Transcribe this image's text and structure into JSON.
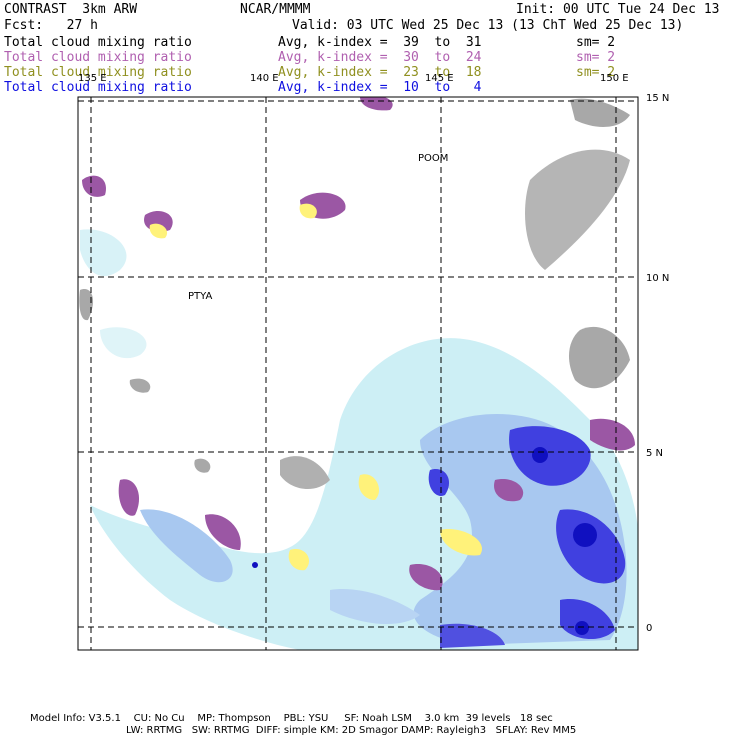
{
  "header": {
    "model": "CONTRAST  3km ARW",
    "center": "NCAR/MMMM",
    "init": "Init: 00 UTC Tue 24 Dec 13",
    "fcst": "Fcst:   27 h",
    "valid": "Valid: 03 UTC Wed 25 Dec 13 (13 ChT Wed 25 Dec 13)"
  },
  "colors": {
    "series1": "#000000",
    "series2": "#b060b0",
    "series3": "#909020",
    "series4": "#1010e0",
    "cloud_light": "#cdeff5",
    "cloud_mid": "#a8c8f0",
    "cloud_deep": "#4040e0",
    "cloud_core": "#1010c0",
    "magenta": "#9b57a4",
    "yellow": "#fff27a",
    "gray": "#a8a8a8"
  },
  "legend": [
    {
      "name": "Total cloud mixing ratio",
      "index": "Avg, k-index =  39  to  31",
      "sm": "sm= 2"
    },
    {
      "name": "Total cloud mixing ratio",
      "index": "Avg, k-index =  30  to  24",
      "sm": "sm= 2"
    },
    {
      "name": "Total cloud mixing ratio",
      "index": "Avg, k-index =  23  to  18",
      "sm": "sm= 2"
    },
    {
      "name": "Total cloud mixing ratio",
      "index": "Avg, k-index =  10  to   4",
      "sm": ""
    }
  ],
  "map": {
    "lon_labels": [
      "135 E",
      "140 E",
      "145 E",
      "150 E"
    ],
    "lat_labels": [
      "15 N",
      "10 N",
      "5 N",
      "0"
    ],
    "places": [
      "POOM",
      "PTYA"
    ]
  },
  "footer": {
    "line1": "Model Info: V3.5.1    CU: No Cu    MP: Thompson    PBL: YSU     SF: Noah LSM    3.0 km  39 levels   18 sec",
    "line2": "LW: RRTMG   SW: RRTMG  DIFF: simple KM: 2D Smagor DAMP: Rayleigh3   SFLAY: Rev MM5"
  }
}
